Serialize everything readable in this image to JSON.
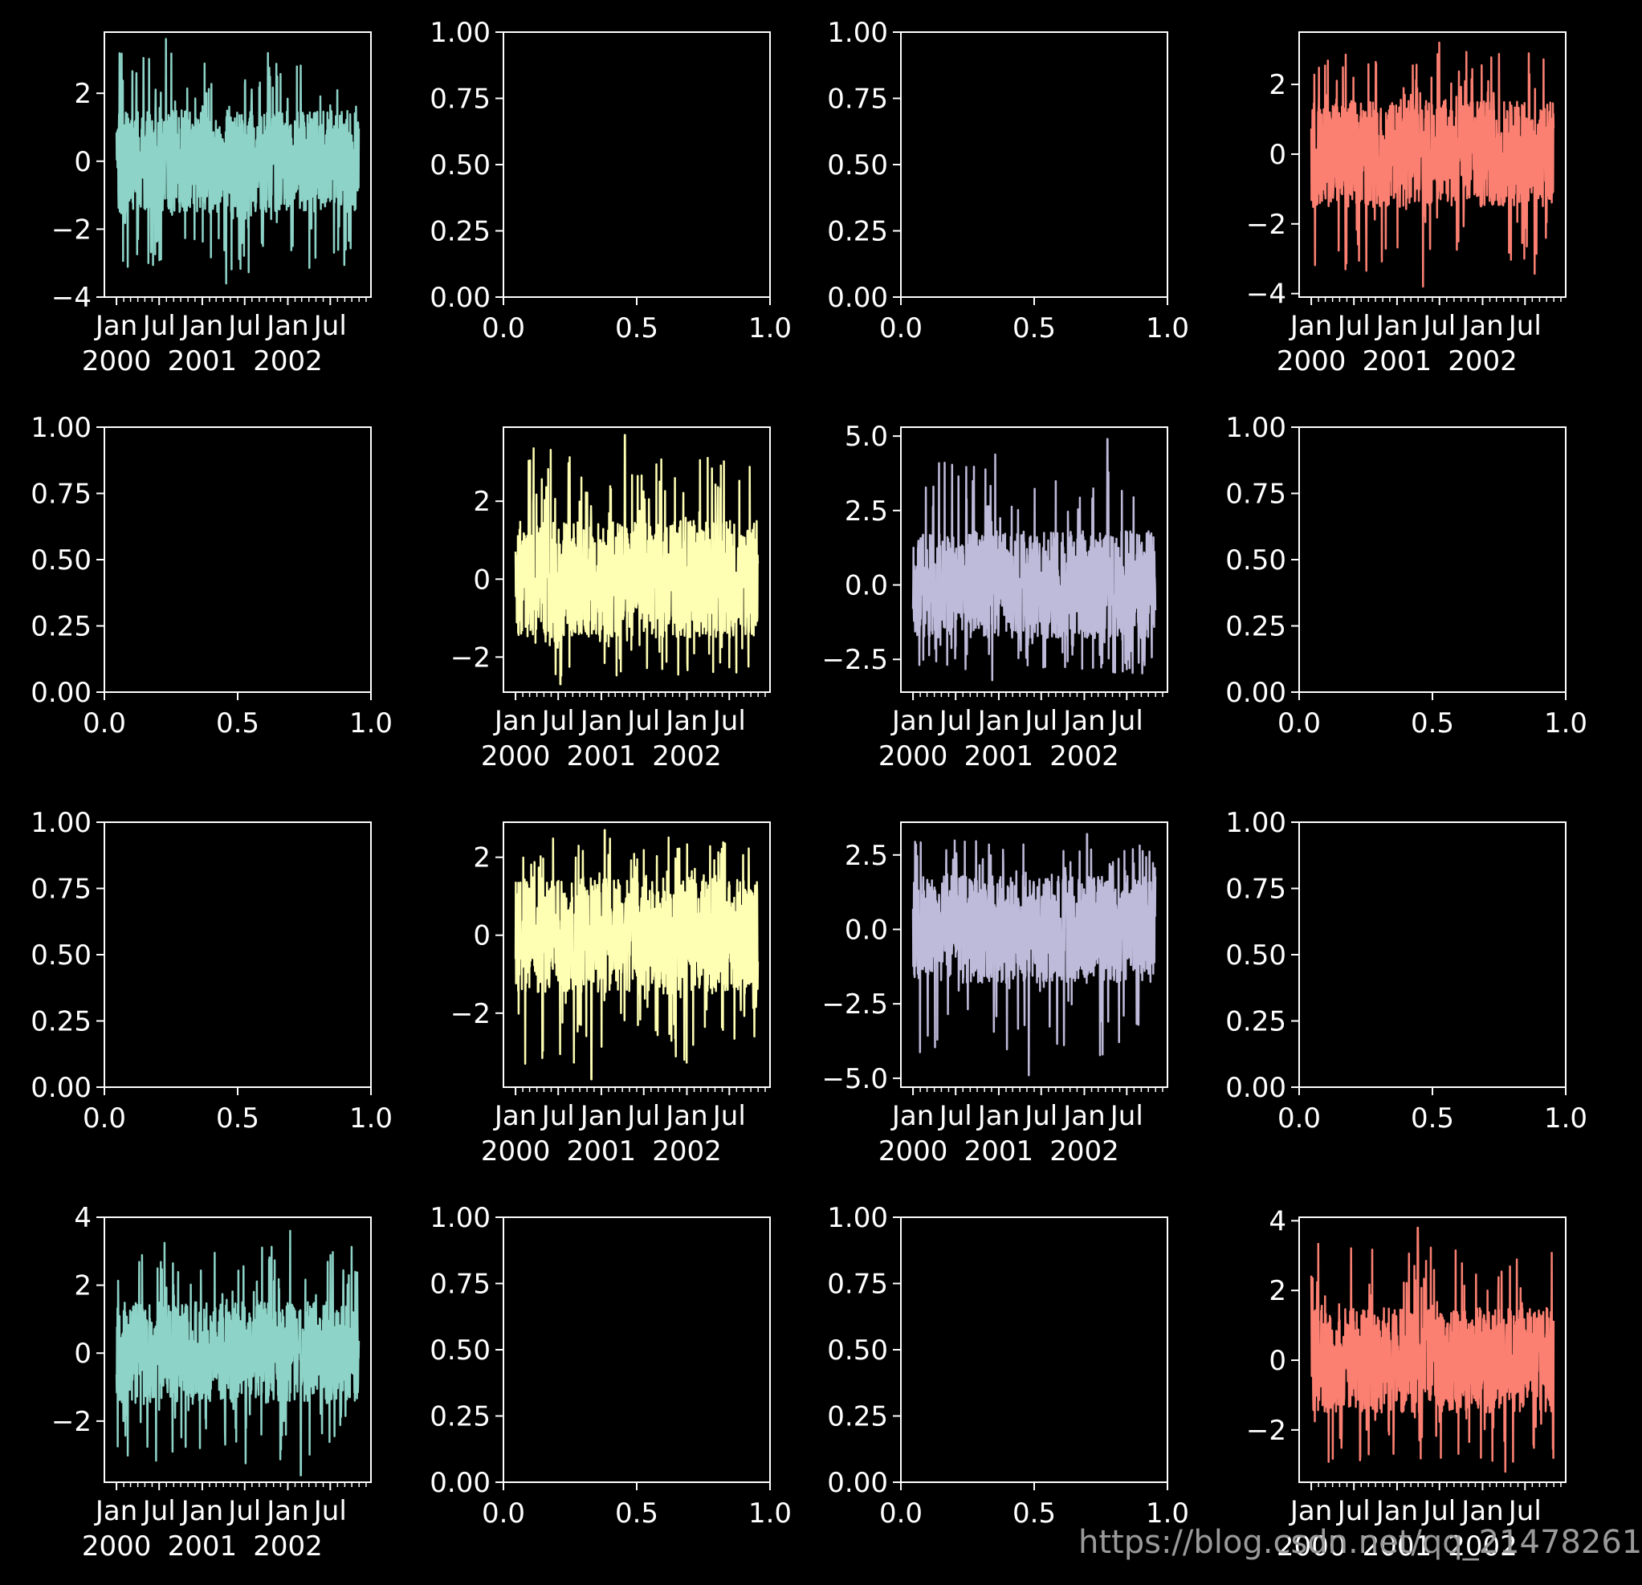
{
  "figure": {
    "background": "#000000",
    "foreground": "#ffffff",
    "watermark": "https://blog.csdn.net/qq_21478261"
  },
  "chart_data": [
    {
      "type": "line",
      "row": 0,
      "col": 0,
      "x_range": [
        "2000-01-01",
        "2002-10-31"
      ],
      "ylim": [
        -4,
        3.8
      ],
      "yticks": [
        -4,
        -2,
        0,
        2
      ],
      "color": "#8dd3c7",
      "series_summary": {
        "min": -3.6,
        "max": 3.6,
        "band_low": -1.5,
        "band_high": 1.5
      },
      "xticks": [
        {
          "date": "2000-01",
          "major": "Jan",
          "minor": "2000"
        },
        {
          "date": "2000-07",
          "major": "Jul",
          "minor": ""
        },
        {
          "date": "2001-01",
          "major": "Jan",
          "minor": "2001"
        },
        {
          "date": "2001-07",
          "major": "Jul",
          "minor": ""
        },
        {
          "date": "2002-01",
          "major": "Jan",
          "minor": "2002"
        },
        {
          "date": "2002-07",
          "major": "Jul",
          "minor": ""
        }
      ]
    },
    {
      "type": "empty",
      "row": 0,
      "col": 1,
      "xlim": [
        0,
        1
      ],
      "ylim": [
        0,
        1
      ],
      "xticks": [
        "0.0",
        "0.5",
        "1.0"
      ],
      "yticks": [
        "0.00",
        "0.25",
        "0.50",
        "0.75",
        "1.00"
      ]
    },
    {
      "type": "empty",
      "row": 0,
      "col": 2,
      "xlim": [
        0,
        1
      ],
      "ylim": [
        0,
        1
      ],
      "xticks": [
        "0.0",
        "0.5",
        "1.0"
      ],
      "yticks": [
        "0.00",
        "0.25",
        "0.50",
        "0.75",
        "1.00"
      ]
    },
    {
      "type": "line",
      "row": 0,
      "col": 3,
      "x_range": [
        "2000-01-01",
        "2002-10-31"
      ],
      "ylim": [
        -4.1,
        3.5
      ],
      "yticks": [
        -4,
        -2,
        0,
        2
      ],
      "color": "#fb8072",
      "series_summary": {
        "min": -3.8,
        "max": 3.2,
        "band_low": -1.5,
        "band_high": 1.5
      },
      "xticks": [
        {
          "date": "2000-01",
          "major": "Jan",
          "minor": "2000"
        },
        {
          "date": "2000-07",
          "major": "Jul",
          "minor": ""
        },
        {
          "date": "2001-01",
          "major": "Jan",
          "minor": "2001"
        },
        {
          "date": "2001-07",
          "major": "Jul",
          "minor": ""
        },
        {
          "date": "2002-01",
          "major": "Jan",
          "minor": "2002"
        },
        {
          "date": "2002-07",
          "major": "Jul",
          "minor": ""
        }
      ]
    },
    {
      "type": "empty",
      "row": 1,
      "col": 0,
      "xlim": [
        0,
        1
      ],
      "ylim": [
        0,
        1
      ],
      "xticks": [
        "0.0",
        "0.5",
        "1.0"
      ],
      "yticks": [
        "0.00",
        "0.25",
        "0.50",
        "0.75",
        "1.00"
      ]
    },
    {
      "type": "line",
      "row": 1,
      "col": 1,
      "x_range": [
        "2000-01-01",
        "2002-10-31"
      ],
      "ylim": [
        -2.9,
        3.9
      ],
      "yticks": [
        -2,
        0,
        2
      ],
      "color": "#ffffb3",
      "series_summary": {
        "min": -2.7,
        "max": 3.7,
        "band_low": -1.5,
        "band_high": 1.5
      },
      "xticks": [
        {
          "date": "2000-01",
          "major": "Jan",
          "minor": "2000"
        },
        {
          "date": "2000-07",
          "major": "Jul",
          "minor": ""
        },
        {
          "date": "2001-01",
          "major": "Jan",
          "minor": "2001"
        },
        {
          "date": "2001-07",
          "major": "Jul",
          "minor": ""
        },
        {
          "date": "2002-01",
          "major": "Jan",
          "minor": "2002"
        },
        {
          "date": "2002-07",
          "major": "Jul",
          "minor": ""
        }
      ]
    },
    {
      "type": "line",
      "row": 1,
      "col": 2,
      "x_range": [
        "2000-01-01",
        "2002-10-31"
      ],
      "ylim": [
        -3.6,
        5.3
      ],
      "yticks": [
        -2.5,
        0.0,
        2.5,
        5.0
      ],
      "yticklabels": [
        "−2.5",
        "0.0",
        "2.5",
        "5.0"
      ],
      "color": "#bebada",
      "series_summary": {
        "min": -3.2,
        "max": 4.9,
        "band_low": -1.8,
        "band_high": 1.8
      },
      "xticks": [
        {
          "date": "2000-01",
          "major": "Jan",
          "minor": "2000"
        },
        {
          "date": "2000-07",
          "major": "Jul",
          "minor": ""
        },
        {
          "date": "2001-01",
          "major": "Jan",
          "minor": "2001"
        },
        {
          "date": "2001-07",
          "major": "Jul",
          "minor": ""
        },
        {
          "date": "2002-01",
          "major": "Jan",
          "minor": "2002"
        },
        {
          "date": "2002-07",
          "major": "Jul",
          "minor": ""
        }
      ]
    },
    {
      "type": "empty",
      "row": 1,
      "col": 3,
      "xlim": [
        0,
        1
      ],
      "ylim": [
        0,
        1
      ],
      "xticks": [
        "0.0",
        "0.5",
        "1.0"
      ],
      "yticks": [
        "0.00",
        "0.25",
        "0.50",
        "0.75",
        "1.00"
      ]
    },
    {
      "type": "empty",
      "row": 2,
      "col": 0,
      "xlim": [
        0,
        1
      ],
      "ylim": [
        0,
        1
      ],
      "xticks": [
        "0.0",
        "0.5",
        "1.0"
      ],
      "yticks": [
        "0.00",
        "0.25",
        "0.50",
        "0.75",
        "1.00"
      ]
    },
    {
      "type": "line",
      "row": 2,
      "col": 1,
      "x_range": [
        "2000-01-01",
        "2002-10-31"
      ],
      "ylim": [
        -3.9,
        2.9
      ],
      "yticks": [
        -2,
        0,
        2
      ],
      "color": "#ffffb3",
      "series_summary": {
        "min": -3.7,
        "max": 2.7,
        "band_low": -1.5,
        "band_high": 1.5
      },
      "xticks": [
        {
          "date": "2000-01",
          "major": "Jan",
          "minor": "2000"
        },
        {
          "date": "2000-07",
          "major": "Jul",
          "minor": ""
        },
        {
          "date": "2001-01",
          "major": "Jan",
          "minor": "2001"
        },
        {
          "date": "2001-07",
          "major": "Jul",
          "minor": ""
        },
        {
          "date": "2002-01",
          "major": "Jan",
          "minor": "2002"
        },
        {
          "date": "2002-07",
          "major": "Jul",
          "minor": ""
        }
      ]
    },
    {
      "type": "line",
      "row": 2,
      "col": 2,
      "x_range": [
        "2000-01-01",
        "2002-10-31"
      ],
      "ylim": [
        -5.3,
        3.6
      ],
      "yticks": [
        -5.0,
        -2.5,
        0.0,
        2.5
      ],
      "yticklabels": [
        "−5.0",
        "−2.5",
        "0.0",
        "2.5"
      ],
      "color": "#bebada",
      "series_summary": {
        "min": -4.9,
        "max": 3.2,
        "band_low": -1.8,
        "band_high": 1.8
      },
      "xticks": [
        {
          "date": "2000-01",
          "major": "Jan",
          "minor": "2000"
        },
        {
          "date": "2000-07",
          "major": "Jul",
          "minor": ""
        },
        {
          "date": "2001-01",
          "major": "Jan",
          "minor": "2001"
        },
        {
          "date": "2001-07",
          "major": "Jul",
          "minor": ""
        },
        {
          "date": "2002-01",
          "major": "Jan",
          "minor": "2002"
        },
        {
          "date": "2002-07",
          "major": "Jul",
          "minor": ""
        }
      ]
    },
    {
      "type": "empty",
      "row": 2,
      "col": 3,
      "xlim": [
        0,
        1
      ],
      "ylim": [
        0,
        1
      ],
      "xticks": [
        "0.0",
        "0.5",
        "1.0"
      ],
      "yticks": [
        "0.00",
        "0.25",
        "0.50",
        "0.75",
        "1.00"
      ]
    },
    {
      "type": "line",
      "row": 3,
      "col": 0,
      "x_range": [
        "2000-01-01",
        "2002-10-31"
      ],
      "ylim": [
        -3.8,
        4.0
      ],
      "yticks": [
        -2,
        0,
        2,
        4
      ],
      "color": "#8dd3c7",
      "series_summary": {
        "min": -3.6,
        "max": 3.6,
        "band_low": -1.5,
        "band_high": 1.5
      },
      "xticks": [
        {
          "date": "2000-01",
          "major": "Jan",
          "minor": "2000"
        },
        {
          "date": "2000-07",
          "major": "Jul",
          "minor": ""
        },
        {
          "date": "2001-01",
          "major": "Jan",
          "minor": "2001"
        },
        {
          "date": "2001-07",
          "major": "Jul",
          "minor": ""
        },
        {
          "date": "2002-01",
          "major": "Jan",
          "minor": "2002"
        },
        {
          "date": "2002-07",
          "major": "Jul",
          "minor": ""
        }
      ]
    },
    {
      "type": "empty",
      "row": 3,
      "col": 1,
      "xlim": [
        0,
        1
      ],
      "ylim": [
        0,
        1
      ],
      "xticks": [
        "0.0",
        "0.5",
        "1.0"
      ],
      "yticks": [
        "0.00",
        "0.25",
        "0.50",
        "0.75",
        "1.00"
      ]
    },
    {
      "type": "empty",
      "row": 3,
      "col": 2,
      "xlim": [
        0,
        1
      ],
      "ylim": [
        0,
        1
      ],
      "xticks": [
        "0.0",
        "0.5",
        "1.0"
      ],
      "yticks": [
        "0.00",
        "0.25",
        "0.50",
        "0.75",
        "1.00"
      ]
    },
    {
      "type": "line",
      "row": 3,
      "col": 3,
      "x_range": [
        "2000-01-01",
        "2002-10-31"
      ],
      "ylim": [
        -3.5,
        4.1
      ],
      "yticks": [
        -2,
        0,
        2,
        4
      ],
      "color": "#fb8072",
      "series_summary": {
        "min": -3.2,
        "max": 3.8,
        "band_low": -1.5,
        "band_high": 1.5
      },
      "xticks": [
        {
          "date": "2000-01",
          "major": "Jan",
          "minor": "2000"
        },
        {
          "date": "2000-07",
          "major": "Jul",
          "minor": ""
        },
        {
          "date": "2001-01",
          "major": "Jan",
          "minor": "2001"
        },
        {
          "date": "2001-07",
          "major": "Jul",
          "minor": ""
        },
        {
          "date": "2002-01",
          "major": "Jan",
          "minor": "2002"
        },
        {
          "date": "2002-07",
          "major": "Jul",
          "minor": ""
        }
      ]
    }
  ]
}
